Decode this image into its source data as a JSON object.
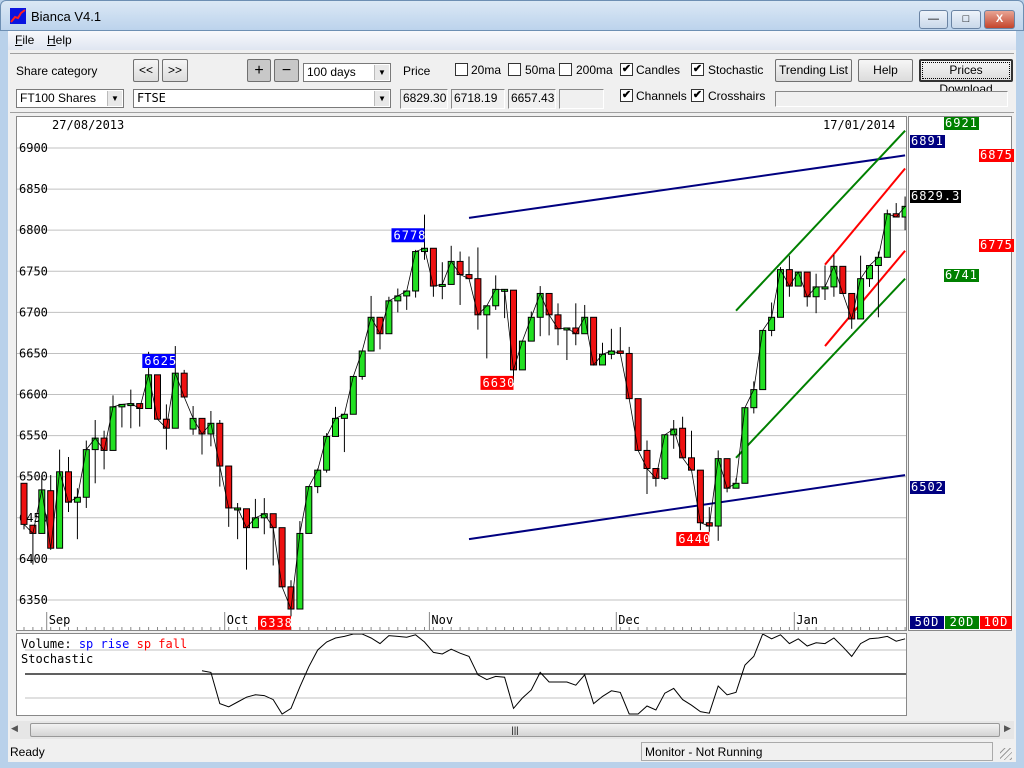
{
  "window": {
    "title": "Bianca V4.1",
    "controls": {
      "minimize": "—",
      "maximize": "□",
      "close": "X"
    }
  },
  "menu": [
    {
      "label": "File",
      "mnemonic": "F",
      "rest": "ile"
    },
    {
      "label": "Help",
      "mnemonic": "H",
      "rest": "elp"
    }
  ],
  "toolbar": {
    "share_category_label": "Share category",
    "prev_label": "<<",
    "next_label": ">>",
    "zoom_in_label": "+",
    "zoom_out_label": "−",
    "period": "100 days",
    "price_label": "Price",
    "checkboxes": [
      {
        "label": "20ma",
        "checked": false
      },
      {
        "label": "50ma",
        "checked": false
      },
      {
        "label": "200ma",
        "checked": false
      },
      {
        "label": "Candles",
        "checked": true
      },
      {
        "label": "Stochastic",
        "checked": true
      },
      {
        "label": "Channels",
        "checked": true
      },
      {
        "label": "Crosshairs",
        "checked": true
      }
    ],
    "trending_list_label": "Trending List",
    "help_label": "Help",
    "prices_download_label": "Prices Download",
    "category_value": "FT100 Shares",
    "share_value": "FTSE",
    "price_values": [
      "6829.30",
      "6718.19",
      "6657.43",
      ""
    ],
    "info_box": ""
  },
  "chart_data": {
    "type": "candlestick",
    "start_date": "27/08/2013",
    "end_date": "17/01/2014",
    "ylim": [
      6320,
      6940
    ],
    "yticks": [
      6350,
      6400,
      6450,
      6500,
      6550,
      6600,
      6650,
      6700,
      6750,
      6800,
      6850,
      6900
    ],
    "grid": true,
    "months": [
      {
        "label": "Sep",
        "day": 4
      },
      {
        "label": "Oct",
        "day": 24
      },
      {
        "label": "Nov",
        "day": 47
      },
      {
        "label": "Dec",
        "day": 68
      },
      {
        "label": "Jan",
        "day": 88
      }
    ],
    "candles_ohlc": [
      [
        6492,
        6492,
        6436,
        6442
      ],
      [
        6441,
        6441,
        6393,
        6431
      ],
      [
        6431,
        6502,
        6431,
        6484
      ],
      [
        6483,
        6502,
        6411,
        6413
      ],
      [
        6413,
        6533,
        6413,
        6506
      ],
      [
        6506,
        6524,
        6457,
        6469
      ],
      [
        6469,
        6486,
        6424,
        6475
      ],
      [
        6475,
        6544,
        6462,
        6533
      ],
      [
        6533,
        6569,
        6492,
        6547
      ],
      [
        6547,
        6556,
        6509,
        6532
      ],
      [
        6532,
        6599,
        6532,
        6585
      ],
      [
        6585,
        6588,
        6560,
        6588
      ],
      [
        6589,
        6606,
        6559,
        6589
      ],
      [
        6589,
        6589,
        6561,
        6583
      ],
      [
        6583,
        6652,
        6583,
        6624
      ],
      [
        6624,
        6624,
        6570,
        6570
      ],
      [
        6570,
        6588,
        6533,
        6559
      ],
      [
        6559,
        6659,
        6559,
        6626
      ],
      [
        6626,
        6630,
        6597,
        6597
      ],
      [
        6558,
        6586,
        6551,
        6571
      ],
      [
        6571,
        6571,
        6527,
        6552
      ],
      [
        6552,
        6580,
        6537,
        6565
      ],
      [
        6565,
        6569,
        6488,
        6513
      ],
      [
        6513,
        6513,
        6439,
        6462
      ],
      [
        6462,
        6468,
        6424,
        6462
      ],
      [
        6461,
        6461,
        6387,
        6438
      ],
      [
        6438,
        6473,
        6438,
        6450
      ],
      [
        6450,
        6474,
        6430,
        6455
      ],
      [
        6455,
        6455,
        6392,
        6438
      ],
      [
        6438,
        6438,
        6366,
        6366
      ],
      [
        6366,
        6374,
        6330,
        6339
      ],
      [
        6339,
        6446,
        6339,
        6431
      ],
      [
        6431,
        6488,
        6431,
        6488
      ],
      [
        6488,
        6510,
        6480,
        6508
      ],
      [
        6508,
        6553,
        6505,
        6549
      ],
      [
        6549,
        6585,
        6549,
        6571
      ],
      [
        6571,
        6576,
        6530,
        6576
      ],
      [
        6576,
        6622,
        6576,
        6622
      ],
      [
        6622,
        6653,
        6618,
        6653
      ],
      [
        6653,
        6720,
        6653,
        6694
      ],
      [
        6694,
        6694,
        6655,
        6674
      ],
      [
        6674,
        6719,
        6674,
        6714
      ],
      [
        6714,
        6729,
        6700,
        6720
      ],
      [
        6720,
        6726,
        6703,
        6726
      ],
      [
        6726,
        6776,
        6718,
        6774
      ],
      [
        6774,
        6819,
        6764,
        6778
      ],
      [
        6778,
        6778,
        6719,
        6732
      ],
      [
        6732,
        6761,
        6716,
        6734
      ],
      [
        6734,
        6781,
        6734,
        6762
      ],
      [
        6762,
        6774,
        6709,
        6746
      ],
      [
        6746,
        6768,
        6741,
        6741
      ],
      [
        6741,
        6779,
        6679,
        6697
      ],
      [
        6697,
        6708,
        6644,
        6708
      ],
      [
        6708,
        6745,
        6703,
        6728
      ],
      [
        6728,
        6728,
        6693,
        6728
      ],
      [
        6727,
        6727,
        6614,
        6630
      ],
      [
        6630,
        6665,
        6630,
        6665
      ],
      [
        6665,
        6701,
        6665,
        6694
      ],
      [
        6694,
        6732,
        6671,
        6723
      ],
      [
        6723,
        6723,
        6672,
        6697
      ],
      [
        6697,
        6711,
        6660,
        6680
      ],
      [
        6681,
        6681,
        6642,
        6681
      ],
      [
        6681,
        6711,
        6660,
        6674
      ],
      [
        6674,
        6709,
        6674,
        6694
      ],
      [
        6694,
        6694,
        6636,
        6636
      ],
      [
        6636,
        6663,
        6636,
        6649
      ],
      [
        6649,
        6680,
        6643,
        6653
      ],
      [
        6653,
        6682,
        6650,
        6650
      ],
      [
        6650,
        6658,
        6595,
        6595
      ],
      [
        6595,
        6595,
        6532,
        6532
      ],
      [
        6532,
        6544,
        6479,
        6510
      ],
      [
        6510,
        6510,
        6488,
        6498
      ],
      [
        6498,
        6551,
        6496,
        6551
      ],
      [
        6551,
        6569,
        6534,
        6558
      ],
      [
        6559,
        6573,
        6523,
        6523
      ],
      [
        6523,
        6556,
        6508,
        6508
      ],
      [
        6508,
        6508,
        6435,
        6444
      ],
      [
        6444,
        6463,
        6433,
        6440
      ],
      [
        6440,
        6532,
        6422,
        6522
      ],
      [
        6522,
        6522,
        6481,
        6486
      ],
      [
        6486,
        6498,
        6486,
        6492
      ],
      [
        6492,
        6584,
        6492,
        6584
      ],
      [
        6584,
        6616,
        6577,
        6606
      ],
      [
        6606,
        6678,
        6606,
        6678
      ],
      [
        6678,
        6712,
        6671,
        6694
      ],
      [
        6694,
        6755,
        6694,
        6752
      ],
      [
        6752,
        6769,
        6719,
        6732
      ],
      [
        6732,
        6749,
        6732,
        6749
      ],
      [
        6749,
        6749,
        6707,
        6719
      ],
      [
        6719,
        6747,
        6699,
        6731
      ],
      [
        6731,
        6757,
        6715,
        6731
      ],
      [
        6731,
        6770,
        6719,
        6756
      ],
      [
        6756,
        6756,
        6723,
        6723
      ],
      [
        6723,
        6723,
        6680,
        6692
      ],
      [
        6692,
        6769,
        6692,
        6741
      ],
      [
        6741,
        6757,
        6731,
        6757
      ],
      [
        6757,
        6774,
        6694,
        6767
      ],
      [
        6767,
        6825,
        6767,
        6820
      ],
      [
        6820,
        6833,
        6816,
        6816
      ],
      [
        6816,
        6841,
        6800,
        6829
      ]
    ],
    "extreme_labels": [
      {
        "text": "6625",
        "day": 18,
        "value": 6625,
        "kind": "high"
      },
      {
        "text": "6778",
        "day": 46,
        "value": 6778,
        "kind": "high"
      },
      {
        "text": "6338",
        "day": 31,
        "value": 6338,
        "kind": "low"
      },
      {
        "text": "6630",
        "day": 56,
        "value": 6630,
        "kind": "low"
      },
      {
        "text": "6440",
        "day": 78,
        "value": 6440,
        "kind": "low"
      }
    ],
    "channels": [
      {
        "name": "50D",
        "color": "#000080",
        "start_day": 51,
        "end_day": 100,
        "upper": [
          6815,
          6891
        ],
        "lower": [
          6424,
          6502
        ]
      },
      {
        "name": "20D",
        "color": "#008000",
        "start_day": 81,
        "end_day": 100,
        "upper": [
          6702,
          6921
        ],
        "lower": [
          6523,
          6741
        ]
      },
      {
        "name": "10D",
        "color": "#ff0000",
        "start_day": 91,
        "end_day": 100,
        "upper": [
          6758,
          6875
        ],
        "lower": [
          6659,
          6775
        ]
      }
    ],
    "colors": {
      "rise": "#22e022",
      "fall": "#ee1111",
      "high_label": "#0000ff",
      "low_label": "#ff0000"
    },
    "right_labels": {
      "g_upper": "6921",
      "b_upper": "6891",
      "r_upper": "6875",
      "last": "6829.3",
      "r_lower": "6775",
      "g_lower": "6741",
      "b_lower": "6502"
    },
    "legend": [
      "50D",
      "20D",
      "10D"
    ],
    "stochastic": {
      "legend_volume": "Volume:",
      "legend_rise": "sp rise",
      "legend_fall": "sp fall",
      "title": "Stochastic",
      "start_day": 21,
      "values": [
        54,
        52,
        13,
        9,
        15,
        21,
        24,
        23,
        18,
        0,
        7,
        34,
        59,
        80,
        90,
        95,
        97,
        100,
        100,
        95,
        88,
        98,
        97,
        96,
        99,
        90,
        77,
        75,
        81,
        76,
        72,
        49,
        43,
        47,
        46,
        7,
        20,
        30,
        52,
        40,
        40,
        40,
        36,
        49,
        13,
        22,
        29,
        27,
        0,
        0,
        10,
        5,
        26,
        32,
        18,
        11,
        3,
        1,
        35,
        24,
        27,
        61,
        72,
        100,
        94,
        99,
        88,
        94,
        85,
        89,
        88,
        95,
        84,
        72,
        88,
        94,
        95,
        97,
        91,
        94
      ]
    }
  },
  "statusbar": {
    "left": "Ready",
    "monitor": "Monitor - Not Running"
  }
}
